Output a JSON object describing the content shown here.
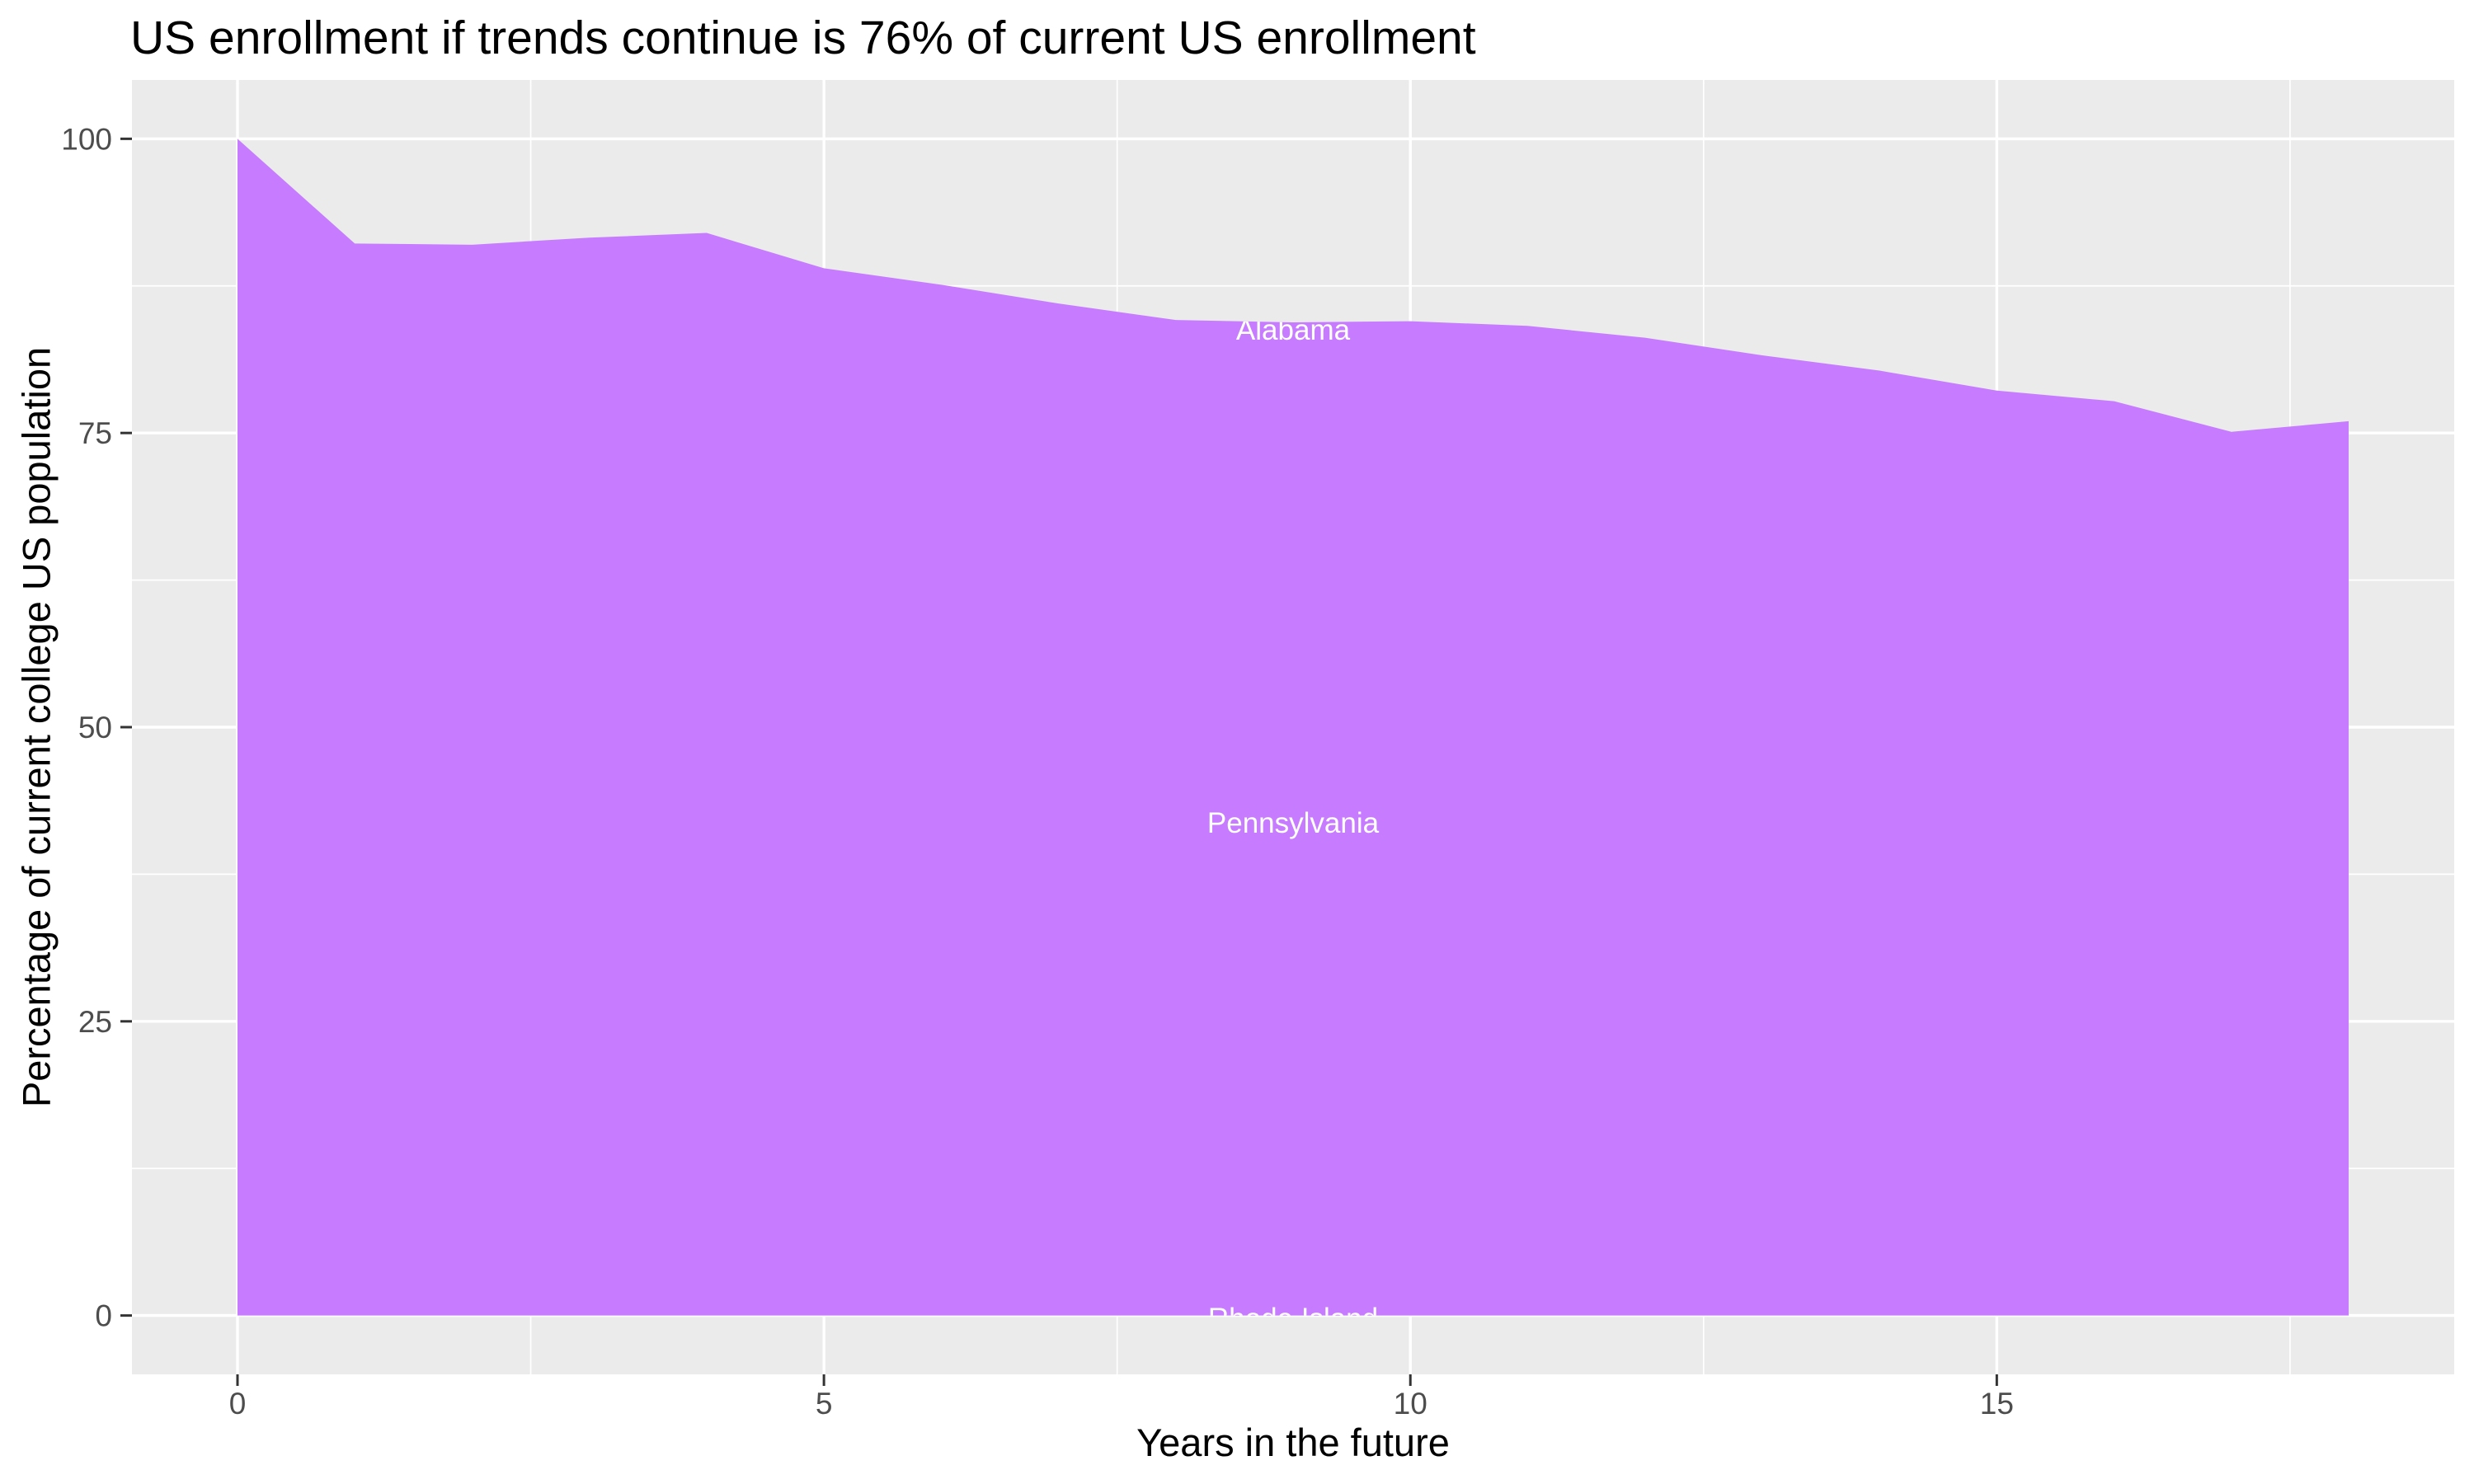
{
  "chart_data": {
    "type": "area",
    "title": "US enrollment if trends continue is 76% of current US enrollment",
    "xlabel": "Years in the future",
    "ylabel": "Percentage of current college US population",
    "x": [
      0,
      1,
      2,
      3,
      4,
      5,
      6,
      7,
      8,
      9,
      10,
      11,
      12,
      13,
      14,
      15,
      16,
      17,
      18
    ],
    "values": [
      100,
      91.1,
      91.0,
      91.6,
      92.0,
      89.0,
      87.6,
      86.0,
      84.6,
      84.4,
      84.5,
      84.1,
      83.1,
      81.6,
      80.3,
      78.6,
      77.7,
      75.1,
      76.0
    ],
    "xlim": [
      -0.9,
      18.9
    ],
    "ylim": [
      -5,
      105
    ],
    "x_ticks": [
      "0",
      "5",
      "10",
      "15"
    ],
    "x_tick_values": [
      0,
      5,
      10,
      15
    ],
    "y_ticks": [
      "0",
      "25",
      "50",
      "75",
      "100"
    ],
    "y_tick_values": [
      0,
      25,
      50,
      75,
      100
    ],
    "x_minor_values": [
      2.5,
      7.5,
      12.5,
      17.5
    ],
    "y_minor_values": [
      12.5,
      37.5,
      62.5,
      87.5
    ],
    "grid": true,
    "legend": "none",
    "area_labels": [
      {
        "text": "Alabama",
        "x": 9,
        "y": 83.8
      },
      {
        "text": "Pennsylvania",
        "x": 9,
        "y": 41.9
      },
      {
        "text": "Rhode Island",
        "x": 9,
        "y": -0.2
      }
    ],
    "colors": {
      "fill": "#C77CFF",
      "panel": "#EBEBEB",
      "grid": "#FFFFFF",
      "tick": "#333333",
      "tick_label": "#4D4D4D",
      "area_label": "#FFFFFF",
      "title": "#000000"
    }
  }
}
